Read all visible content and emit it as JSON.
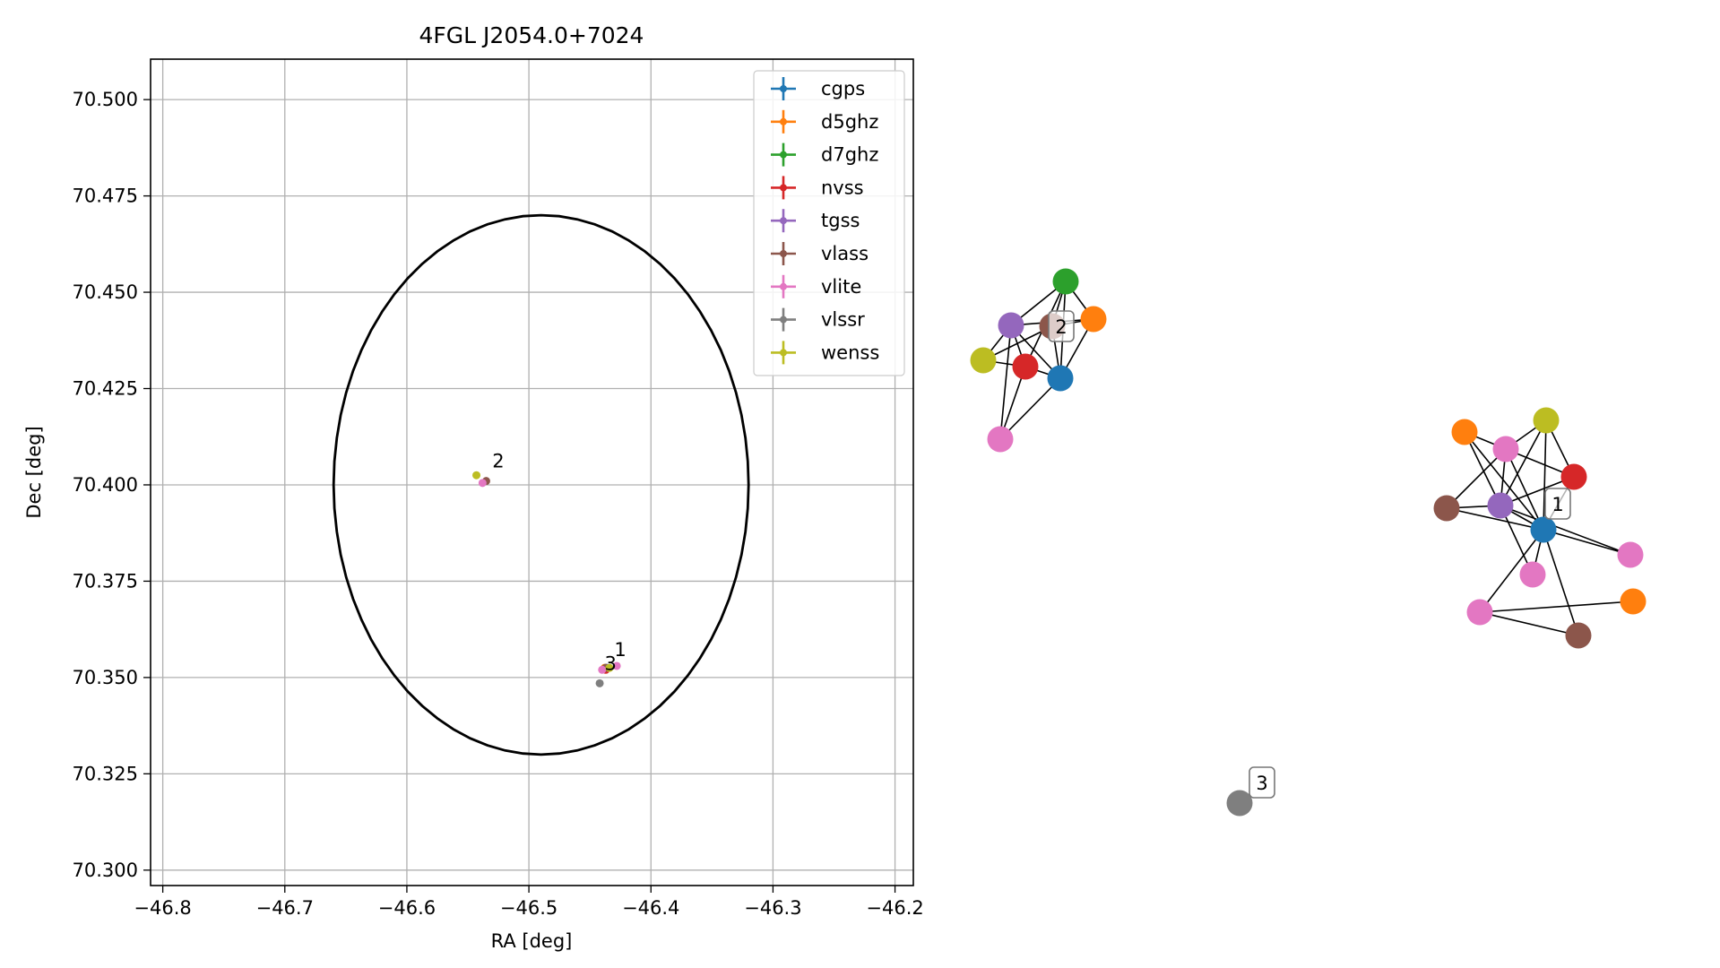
{
  "chart_data": [
    {
      "type": "scatter",
      "title": "4FGL J2054.0+7024",
      "xlabel": "RA [deg]",
      "ylabel": "Dec [deg]",
      "xlim": [
        -46.81,
        -46.185
      ],
      "ylim": [
        70.296,
        70.5105
      ],
      "x_ticks": [
        -46.8,
        -46.7,
        -46.6,
        -46.5,
        -46.4,
        -46.3,
        -46.2
      ],
      "x_tick_labels": [
        "−46.8",
        "−46.7",
        "−46.6",
        "−46.5",
        "−46.4",
        "−46.3",
        "−46.2"
      ],
      "y_ticks": [
        70.3,
        70.325,
        70.35,
        70.375,
        70.4,
        70.425,
        70.45,
        70.475,
        70.5
      ],
      "y_tick_labels": [
        "70.300",
        "70.325",
        "70.350",
        "70.375",
        "70.400",
        "70.425",
        "70.450",
        "70.475",
        "70.500"
      ],
      "grid": true,
      "legend_position": "top-right",
      "ellipse": {
        "center": [
          -46.49,
          70.4
        ],
        "semi_axis_ra": 0.17,
        "semi_axis_dec": 0.07,
        "angle_deg": 0,
        "color": "#000000"
      },
      "series": [
        {
          "name": "cgps",
          "color": "#1f77b4",
          "points": [
            [
              -46.436,
              70.3525
            ]
          ]
        },
        {
          "name": "d5ghz",
          "color": "#ff7f0e",
          "points": [
            [
              -46.438,
              70.3525
            ]
          ]
        },
        {
          "name": "d7ghz",
          "color": "#2ca02c",
          "points": [
            [
              -46.437,
              70.3525
            ]
          ]
        },
        {
          "name": "nvss",
          "color": "#d62728",
          "points": [
            [
              -46.437,
              70.352
            ]
          ]
        },
        {
          "name": "tgss",
          "color": "#9467bd",
          "points": [
            [
              -46.436,
              70.3525
            ]
          ]
        },
        {
          "name": "vlass",
          "color": "#8c564b",
          "points": [
            [
              -46.535,
              70.401
            ],
            [
              -46.437,
              70.3525
            ]
          ]
        },
        {
          "name": "vlite",
          "color": "#e377c2",
          "points": [
            [
              -46.538,
              70.4005
            ],
            [
              -46.428,
              70.353
            ],
            [
              -46.44,
              70.352
            ]
          ]
        },
        {
          "name": "vlssr",
          "color": "#7f7f7f",
          "points": [
            [
              -46.442,
              70.3485
            ]
          ]
        },
        {
          "name": "wenss",
          "color": "#bcbd22",
          "points": [
            [
              -46.543,
              70.4025
            ],
            [
              -46.434,
              70.3525
            ]
          ]
        }
      ],
      "annotations": [
        {
          "text": "2",
          "x": -46.53,
          "y": 70.4045
        },
        {
          "text": "1",
          "x": -46.43,
          "y": 70.3555
        },
        {
          "text": "3",
          "x": -46.438,
          "y": 70.352
        }
      ]
    },
    {
      "type": "network",
      "clusters": [
        {
          "label": "2",
          "nodes": [
            {
              "id": "d7",
              "color": "#2ca02c"
            },
            {
              "id": "d5",
              "color": "#ff7f0e"
            },
            {
              "id": "tg",
              "color": "#9467bd"
            },
            {
              "id": "vl",
              "color": "#8c564b"
            },
            {
              "id": "we",
              "color": "#bcbd22"
            },
            {
              "id": "nv",
              "color": "#d62728"
            },
            {
              "id": "cg",
              "color": "#1f77b4"
            },
            {
              "id": "vi",
              "color": "#e377c2"
            }
          ],
          "edges": [
            [
              "d7",
              "tg"
            ],
            [
              "d7",
              "d5"
            ],
            [
              "d7",
              "cg"
            ],
            [
              "d7",
              "nv"
            ],
            [
              "d7",
              "vl"
            ],
            [
              "tg",
              "d5"
            ],
            [
              "tg",
              "we"
            ],
            [
              "tg",
              "nv"
            ],
            [
              "tg",
              "cg"
            ],
            [
              "tg",
              "vi"
            ],
            [
              "vl",
              "we"
            ],
            [
              "vl",
              "cg"
            ],
            [
              "vl",
              "d5"
            ],
            [
              "nv",
              "vi"
            ],
            [
              "nv",
              "cg"
            ],
            [
              "nv",
              "we"
            ],
            [
              "cg",
              "vi"
            ],
            [
              "cg",
              "d5"
            ]
          ]
        },
        {
          "label": "1",
          "nodes": [
            {
              "id": "cg",
              "color": "#1f77b4"
            },
            {
              "id": "d5a",
              "color": "#ff7f0e"
            },
            {
              "id": "we",
              "color": "#bcbd22"
            },
            {
              "id": "vi1",
              "color": "#e377c2"
            },
            {
              "id": "nv",
              "color": "#d62728"
            },
            {
              "id": "vl1",
              "color": "#8c564b"
            },
            {
              "id": "tg",
              "color": "#9467bd"
            },
            {
              "id": "vi2",
              "color": "#e377c2"
            },
            {
              "id": "vi3",
              "color": "#e377c2"
            },
            {
              "id": "vi4",
              "color": "#e377c2"
            },
            {
              "id": "d5b",
              "color": "#ff7f0e"
            },
            {
              "id": "vl2",
              "color": "#8c564b"
            }
          ],
          "edges": [
            [
              "cg",
              "d5a"
            ],
            [
              "cg",
              "we"
            ],
            [
              "cg",
              "vi1"
            ],
            [
              "cg",
              "nv"
            ],
            [
              "cg",
              "vl1"
            ],
            [
              "cg",
              "tg"
            ],
            [
              "cg",
              "vi2"
            ],
            [
              "cg",
              "vi3"
            ],
            [
              "cg",
              "vi4"
            ],
            [
              "cg",
              "vl2"
            ],
            [
              "tg",
              "d5a"
            ],
            [
              "tg",
              "we"
            ],
            [
              "tg",
              "vi1"
            ],
            [
              "tg",
              "nv"
            ],
            [
              "tg",
              "vl1"
            ],
            [
              "tg",
              "vi2"
            ],
            [
              "tg",
              "vi3"
            ],
            [
              "vi1",
              "we"
            ],
            [
              "vi1",
              "vl1"
            ],
            [
              "vi1",
              "nv"
            ],
            [
              "we",
              "nv"
            ],
            [
              "d5a",
              "vi1"
            ],
            [
              "vi4",
              "d5b"
            ],
            [
              "vi4",
              "vl2"
            ]
          ]
        },
        {
          "label": "3",
          "nodes": [
            {
              "id": "vs",
              "color": "#7f7f7f"
            }
          ],
          "edges": []
        }
      ]
    }
  ]
}
